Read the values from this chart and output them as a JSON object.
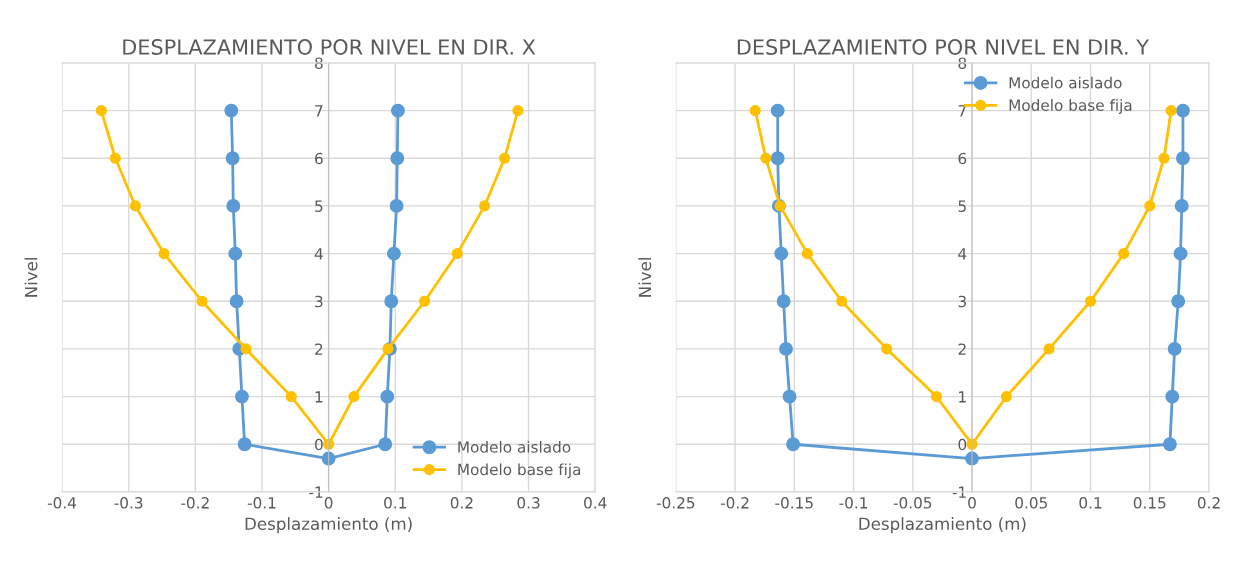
{
  "chart_data": [
    {
      "type": "line",
      "title": "DESPLAZAMIENTO POR NIVEL EN DIR. X",
      "xlabel": "Desplazamiento (m)",
      "ylabel": "Nivel",
      "xlim": [
        -0.4,
        0.4
      ],
      "xticks": [
        -0.4,
        -0.3,
        -0.2,
        -0.1,
        0,
        0.1,
        0.2,
        0.3,
        0.4
      ],
      "ylim": [
        -1,
        8
      ],
      "yticks": [
        -1,
        0,
        1,
        2,
        3,
        4,
        5,
        6,
        7,
        8
      ],
      "grid": true,
      "legend": "bottom right",
      "marker": "circle",
      "line_style": "solid",
      "series": [
        {
          "name": "Modelo aislado",
          "color": "#5b9bd5",
          "x": [
            -0.146,
            -0.144,
            -0.143,
            -0.14,
            -0.138,
            -0.134,
            -0.13,
            -0.126,
            0,
            0.085,
            0.088,
            0.092,
            0.094,
            0.098,
            0.102,
            0.103,
            0.104
          ],
          "values": [
            7,
            6,
            5,
            4,
            3,
            2,
            1,
            0,
            -0.3,
            0,
            1,
            2,
            3,
            4,
            5,
            6,
            7
          ]
        },
        {
          "name": "Modelo base fija",
          "color": "#ffc000",
          "x": [
            -0.341,
            -0.32,
            -0.29,
            -0.247,
            -0.19,
            -0.124,
            -0.056,
            0,
            0.038,
            0.089,
            0.144,
            0.193,
            0.234,
            0.264,
            0.284
          ],
          "values": [
            7,
            6,
            5,
            4,
            3,
            2,
            1,
            0,
            1,
            2,
            3,
            4,
            5,
            6,
            7
          ]
        }
      ]
    },
    {
      "type": "line",
      "title": "DESPLAZAMIENTO POR NIVEL EN DIR. Y",
      "xlabel": "Desplazamiento (m)",
      "ylabel": "Nivel",
      "xlim": [
        -0.25,
        0.2
      ],
      "xticks": [
        -0.25,
        -0.2,
        -0.15,
        -0.1,
        -0.05,
        0,
        0.05,
        0.1,
        0.15,
        0.2
      ],
      "ylim": [
        -1,
        8
      ],
      "yticks": [
        -1,
        0,
        1,
        2,
        3,
        4,
        5,
        6,
        7,
        8
      ],
      "grid": true,
      "legend": "top",
      "marker": "circle",
      "line_style": "solid",
      "series": [
        {
          "name": "Modelo aislado",
          "color": "#5b9bd5",
          "x": [
            -0.164,
            -0.164,
            -0.163,
            -0.161,
            -0.159,
            -0.157,
            -0.154,
            -0.151,
            0,
            0.167,
            0.169,
            0.171,
            0.174,
            0.176,
            0.177,
            0.178,
            0.178
          ],
          "values": [
            7,
            6,
            5,
            4,
            3,
            2,
            1,
            0,
            -0.3,
            0,
            1,
            2,
            3,
            4,
            5,
            6,
            7
          ]
        },
        {
          "name": "Modelo base fija",
          "color": "#ffc000",
          "x": [
            -0.183,
            -0.174,
            -0.162,
            -0.139,
            -0.11,
            -0.072,
            -0.03,
            0,
            0.029,
            0.065,
            0.1,
            0.128,
            0.15,
            0.162,
            0.168
          ],
          "values": [
            7,
            6,
            5,
            4,
            3,
            2,
            1,
            0,
            1,
            2,
            3,
            4,
            5,
            6,
            7
          ]
        }
      ]
    }
  ]
}
